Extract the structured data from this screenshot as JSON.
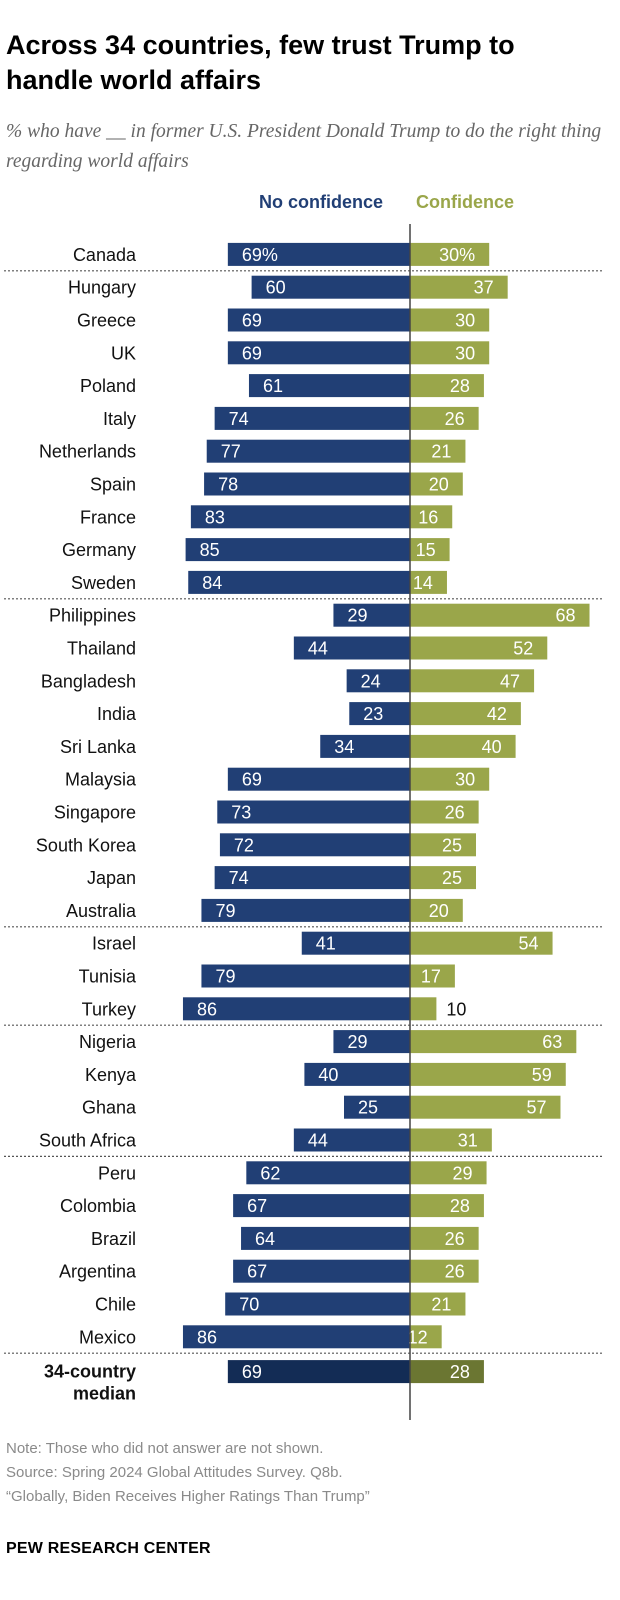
{
  "title": "Across 34 countries, few trust Trump to handle world affairs",
  "subtitle": "% who have __ in former U.S. President Donald Trump to do the right thing regarding world affairs",
  "colors": {
    "no_confidence": "#213f75",
    "confidence": "#9aa64a",
    "median_no_confidence": "#132c55",
    "median_confidence": "#6b7632",
    "divider": "#444444"
  },
  "chart_data": {
    "type": "bar",
    "orientation": "diverging-horizontal",
    "series_labels": [
      "No confidence",
      "Confidence"
    ],
    "categories": [
      "Canada",
      "Hungary",
      "Greece",
      "UK",
      "Poland",
      "Italy",
      "Netherlands",
      "Spain",
      "France",
      "Germany",
      "Sweden",
      "Philippines",
      "Thailand",
      "Bangladesh",
      "India",
      "Sri Lanka",
      "Malaysia",
      "Singapore",
      "South Korea",
      "Japan",
      "Australia",
      "Israel",
      "Tunisia",
      "Turkey",
      "Nigeria",
      "Kenya",
      "Ghana",
      "South Africa",
      "Peru",
      "Colombia",
      "Brazil",
      "Argentina",
      "Chile",
      "Mexico"
    ],
    "series": [
      {
        "name": "No confidence",
        "values": [
          69,
          60,
          69,
          69,
          61,
          74,
          77,
          78,
          83,
          85,
          84,
          29,
          44,
          24,
          23,
          34,
          69,
          73,
          72,
          74,
          79,
          41,
          79,
          86,
          29,
          40,
          25,
          44,
          62,
          67,
          64,
          67,
          70,
          86
        ]
      },
      {
        "name": "Confidence",
        "values": [
          30,
          37,
          30,
          30,
          28,
          26,
          21,
          20,
          16,
          15,
          14,
          68,
          52,
          47,
          42,
          40,
          30,
          26,
          25,
          25,
          20,
          54,
          17,
          10,
          63,
          59,
          57,
          31,
          29,
          28,
          26,
          26,
          21,
          12
        ]
      }
    ],
    "value_labels": {
      "no_confidence": [
        "69%",
        "60",
        "69",
        "69",
        "61",
        "74",
        "77",
        "78",
        "83",
        "85",
        "84",
        "29",
        "44",
        "24",
        "23",
        "34",
        "69",
        "73",
        "72",
        "74",
        "79",
        "41",
        "79",
        "86",
        "29",
        "40",
        "25",
        "44",
        "62",
        "67",
        "64",
        "67",
        "70",
        "86"
      ],
      "confidence": [
        "30%",
        "37",
        "30",
        "30",
        "28",
        "26",
        "21",
        "20",
        "16",
        "15",
        "14",
        "68",
        "52",
        "47",
        "42",
        "40",
        "30",
        "26",
        "25",
        "25",
        "20",
        "54",
        "17",
        "10",
        "63",
        "59",
        "57",
        "31",
        "29",
        "28",
        "26",
        "26",
        "21",
        "12"
      ]
    },
    "group_separators_after": [
      "Canada",
      "Sweden",
      "Australia",
      "Turkey",
      "South Africa",
      "Mexico"
    ],
    "median": {
      "label_lines": [
        "34-country",
        "median"
      ],
      "no_confidence": 69,
      "confidence": 28,
      "no_confidence_label": "69",
      "confidence_label": "28"
    }
  },
  "footer": {
    "note": "Note: Those who did not answer are not shown.",
    "source": "Source: Spring 2024 Global Attitudes Survey. Q8b.",
    "report": "“Globally, Biden Receives Higher Ratings Than Trump”",
    "brand": "PEW RESEARCH CENTER"
  }
}
